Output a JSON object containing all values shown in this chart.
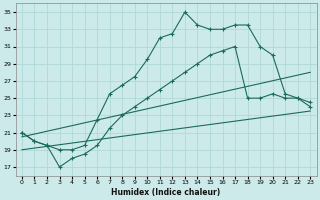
{
  "xlabel": "Humidex (Indice chaleur)",
  "bg_color": "#cceaea",
  "grid_color": "#b0d8d8",
  "line_color": "#1a6b5a",
  "xlim": [
    -0.5,
    23.5
  ],
  "ylim": [
    16,
    36
  ],
  "xticks": [
    0,
    1,
    2,
    3,
    4,
    5,
    6,
    7,
    8,
    9,
    10,
    11,
    12,
    13,
    14,
    15,
    16,
    17,
    18,
    19,
    20,
    21,
    22,
    23
  ],
  "yticks": [
    17,
    19,
    21,
    23,
    25,
    27,
    29,
    31,
    33,
    35
  ],
  "line1_x": [
    0,
    1,
    2,
    3,
    4,
    5,
    6,
    7,
    8,
    9,
    10,
    11,
    12,
    13,
    14,
    15,
    16,
    17,
    18,
    19,
    20,
    21,
    22,
    23
  ],
  "line1_y": [
    21,
    20,
    19.5,
    19,
    19,
    19.5,
    22.5,
    25.5,
    26.5,
    27.5,
    29.5,
    32,
    32.5,
    35,
    33.5,
    33,
    33,
    33.5,
    33.5,
    31,
    30,
    25.5,
    25,
    24.5
  ],
  "line2_x": [
    0,
    1,
    2,
    3,
    4,
    5,
    6,
    7,
    8,
    9,
    10,
    11,
    12,
    13,
    14,
    15,
    16,
    17,
    18,
    19,
    20,
    21,
    22,
    23
  ],
  "line2_y": [
    21,
    20,
    19.5,
    17,
    18,
    18.5,
    19.5,
    21.5,
    23,
    24,
    25,
    26,
    27,
    28,
    29,
    30,
    30.5,
    31,
    25,
    25,
    25.5,
    25,
    25,
    24
  ],
  "line3_x": [
    0,
    23
  ],
  "line3_y": [
    19,
    23.5
  ],
  "line4_x": [
    0,
    23
  ],
  "line4_y": [
    20.5,
    28
  ]
}
